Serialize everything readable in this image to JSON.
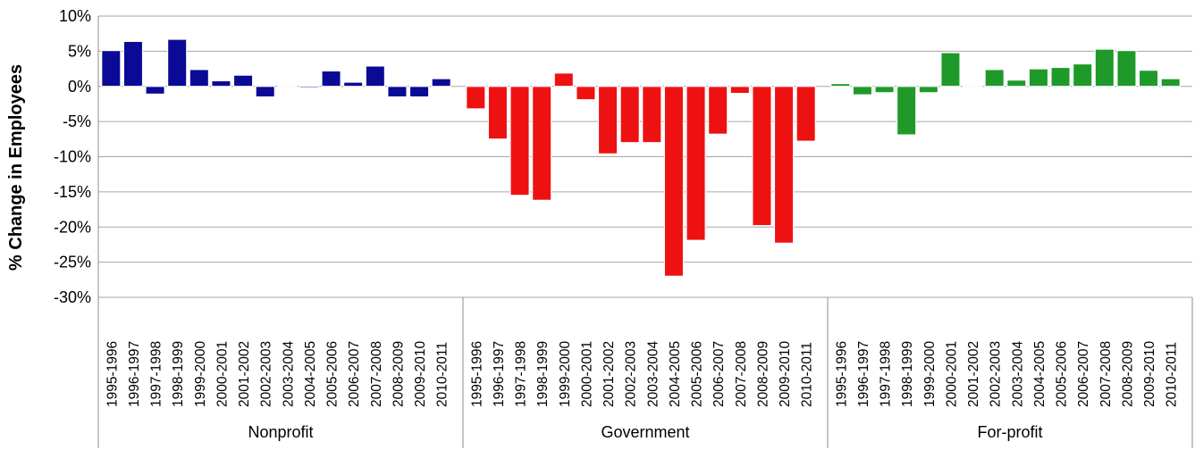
{
  "chart_data": {
    "type": "bar",
    "title": "",
    "xlabel": "",
    "ylabel": "% Change in Employees",
    "ylim": [
      -30,
      10
    ],
    "yticks": [
      10,
      5,
      0,
      -5,
      -10,
      -15,
      -20,
      -25,
      -30
    ],
    "ytick_labels": [
      "10%",
      "5%",
      "0%",
      "-5%",
      "-10%",
      "-15%",
      "-20%",
      "-25%",
      "-30%"
    ],
    "grid": "horizontal",
    "legend": "none",
    "categories": [
      "1995-1996",
      "1996-1997",
      "1997-1998",
      "1998-1999",
      "1999-2000",
      "2000-2001",
      "2001-2002",
      "2002-2003",
      "2003-2004",
      "2004-2005",
      "2005-2006",
      "2006-2007",
      "2007-2008",
      "2008-2009",
      "2009-2010",
      "2010-2011"
    ],
    "series": [
      {
        "name": "Nonprofit",
        "color": "#0a0a96",
        "values": [
          5.1,
          6.4,
          -1.1,
          6.7,
          2.4,
          0.8,
          1.6,
          -1.5,
          0,
          -0.2,
          2.2,
          0.6,
          2.9,
          -1.5,
          -1.5,
          1.1
        ]
      },
      {
        "name": "Government",
        "color": "#ee1111",
        "values": [
          -3.2,
          -7.5,
          -15.5,
          -16.2,
          1.9,
          -1.9,
          -9.6,
          -8.0,
          -8.0,
          -27.0,
          -21.9,
          -6.8,
          -1.0,
          -19.8,
          -22.3,
          -7.8
        ]
      },
      {
        "name": "For-profit",
        "color": "#1f9a2a",
        "values": [
          0.4,
          -1.2,
          -0.9,
          -6.9,
          -0.9,
          4.8,
          -0.1,
          2.4,
          0.9,
          2.5,
          2.7,
          3.2,
          5.3,
          5.1,
          2.3,
          1.1
        ]
      }
    ]
  }
}
